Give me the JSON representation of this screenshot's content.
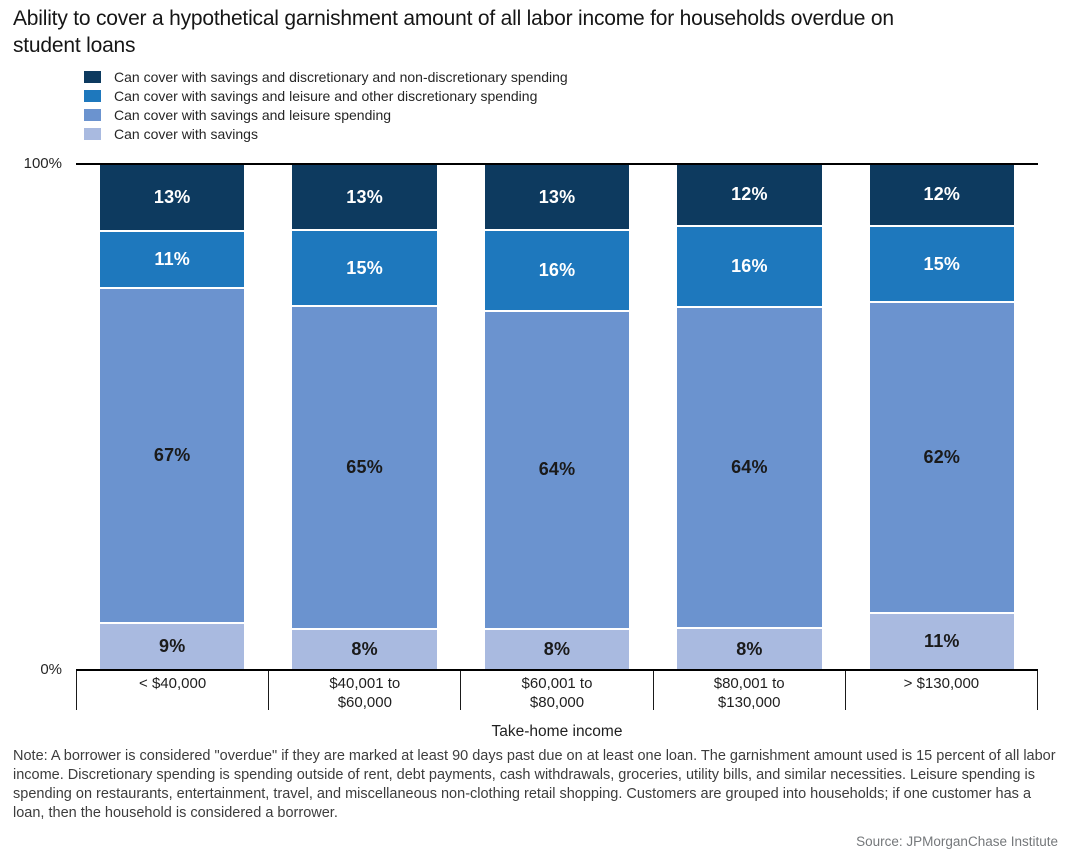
{
  "title": "Ability to cover a hypothetical garnishment amount of all labor income for households overdue on student loans",
  "chart_data": {
    "type": "bar",
    "stacked": true,
    "value_suffix": "%",
    "ylim": [
      0,
      100
    ],
    "grid": false,
    "legend_position": "top-left",
    "y_axis": {
      "top_label": "100%",
      "bottom_label": "0%"
    },
    "x_axis_title": "Take-home income",
    "categories": [
      [
        "< $40,000"
      ],
      [
        "$40,001 to",
        "$60,000"
      ],
      [
        "$60,001 to",
        "$80,000"
      ],
      [
        "$80,001 to",
        "$130,000"
      ],
      [
        "> $130,000"
      ]
    ],
    "series": [
      {
        "name": "Can cover with savings and discretionary and non-discretionary spending",
        "color": "#0d3a5f",
        "label_color": "#ffffff",
        "values": [
          13,
          13,
          13,
          12,
          12
        ]
      },
      {
        "name": "Can cover with savings and leisure and other discretionary spending",
        "color": "#1e78bd",
        "label_color": "#ffffff",
        "values": [
          11,
          15,
          16,
          16,
          15
        ]
      },
      {
        "name": "Can cover with savings and leisure spending",
        "color": "#6b93cf",
        "label_color": "#1a1a1a",
        "values": [
          67,
          65,
          64,
          64,
          62
        ]
      },
      {
        "name": "Can cover with savings",
        "color": "#a9bae0",
        "label_color": "#1a1a1a",
        "values": [
          9,
          8,
          8,
          8,
          11
        ]
      }
    ]
  },
  "footer": {
    "note": "Note: A borrower is considered \"overdue\" if they are marked at least 90 days past due on at least one loan. The garnishment amount used is 15 percent of all labor income. Discretionary spending is spending outside of rent, debt payments, cash withdrawals, groceries, utility bills, and similar necessities. Leisure spending is spending on restaurants, entertainment, travel, and miscellaneous non-clothing retail shopping. Customers are grouped into households; if one customer has a loan, then the household is considered a borrower.",
    "source": "Source: JPMorganChase Institute"
  }
}
